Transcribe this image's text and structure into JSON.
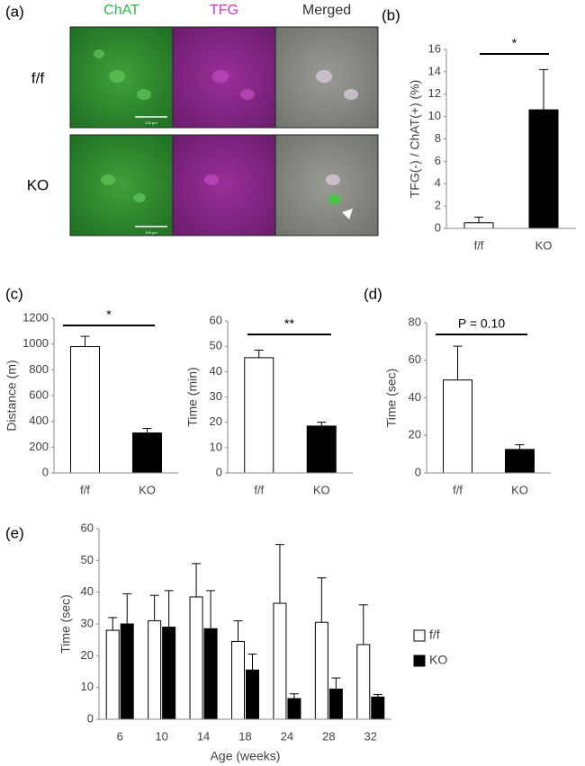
{
  "figure": {
    "panel_labels": [
      "(a)",
      "(b)",
      "(c)",
      "(d)",
      "(e)"
    ],
    "image_columns": [
      "ChAT",
      "TFG",
      "Merged"
    ],
    "image_rows": [
      "f/f",
      "KO"
    ],
    "scale_bar": "100 µm"
  },
  "chart_data": [
    {
      "type": "bar",
      "ylabel": "TFG(-) / ChAT(+) (%)",
      "categories": [
        "f/f",
        "KO"
      ],
      "values": [
        0.5,
        10.6
      ],
      "errors": [
        0.5,
        3.6
      ],
      "colors": [
        "#ffffff",
        "#000000"
      ],
      "ylim": [
        0,
        16
      ],
      "yticks": [
        0,
        2,
        4,
        6,
        8,
        10,
        12,
        14,
        16
      ],
      "annotation": "*"
    },
    {
      "type": "bar",
      "ylabel": "Distance (m)",
      "categories": [
        "f/f",
        "KO"
      ],
      "values": [
        980,
        310
      ],
      "errors": [
        80,
        35
      ],
      "colors": [
        "#ffffff",
        "#000000"
      ],
      "ylim": [
        0,
        1200
      ],
      "yticks": [
        0,
        200,
        400,
        600,
        800,
        1000,
        1200
      ],
      "annotation": "*"
    },
    {
      "type": "bar",
      "ylabel": "Time (min)",
      "categories": [
        "f/f",
        "KO"
      ],
      "values": [
        45.5,
        18.5
      ],
      "errors": [
        3,
        1.5
      ],
      "colors": [
        "#ffffff",
        "#000000"
      ],
      "ylim": [
        0,
        60
      ],
      "yticks": [
        0,
        10,
        20,
        30,
        40,
        50,
        60
      ],
      "annotation": "**"
    },
    {
      "type": "bar",
      "ylabel": "Time (sec)",
      "categories": [
        "f/f",
        "KO"
      ],
      "values": [
        49.5,
        12.5
      ],
      "errors": [
        18,
        2.5
      ],
      "colors": [
        "#ffffff",
        "#000000"
      ],
      "ylim": [
        0,
        80
      ],
      "yticks": [
        0,
        20,
        40,
        60,
        80
      ],
      "annotation": "P = 0.10"
    },
    {
      "type": "bar",
      "ylabel": "Time (sec)",
      "xlabel": "Age (weeks)",
      "categories": [
        "6",
        "10",
        "14",
        "18",
        "24",
        "28",
        "32"
      ],
      "series": [
        {
          "name": "f/f",
          "color": "#ffffff",
          "values": [
            28,
            31,
            38.5,
            24.5,
            36.5,
            30.5,
            23.5
          ],
          "errors": [
            4,
            8,
            10.5,
            6.5,
            18.5,
            14,
            12.5
          ]
        },
        {
          "name": "KO",
          "color": "#000000",
          "values": [
            30,
            29,
            28.5,
            15.5,
            6.5,
            9.5,
            7
          ],
          "errors": [
            9.5,
            11.5,
            12,
            5,
            1.5,
            3.5,
            0.8
          ]
        }
      ],
      "ylim": [
        0,
        60
      ],
      "yticks": [
        0,
        10,
        20,
        30,
        40,
        50,
        60
      ],
      "legend": "right"
    }
  ]
}
